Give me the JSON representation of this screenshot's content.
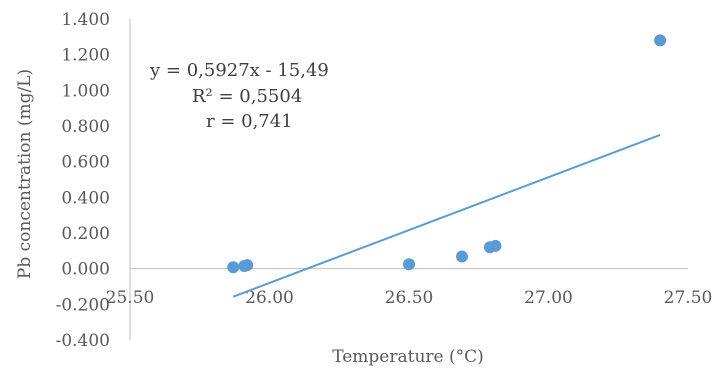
{
  "chart_data": {
    "type": "scatter",
    "title": "",
    "xlabel": "Temperature (°C)",
    "ylabel": "Pb concentration (mg/L)",
    "xlim": [
      25.5,
      27.5
    ],
    "ylim": [
      -0.4,
      1.4
    ],
    "x_ticks": [
      "25.50",
      "26.00",
      "26.50",
      "27.00",
      "27.50"
    ],
    "y_ticks": [
      "-0.400",
      "-0.200",
      "0.000",
      "0.200",
      "0.400",
      "0.600",
      "0.800",
      "1.000",
      "1.200",
      "1.400"
    ],
    "series": [
      {
        "points": [
          {
            "x": 25.87,
            "y": 0.008
          },
          {
            "x": 25.91,
            "y": 0.015
          },
          {
            "x": 25.92,
            "y": 0.02
          },
          {
            "x": 26.5,
            "y": 0.025
          },
          {
            "x": 26.69,
            "y": 0.068
          },
          {
            "x": 26.79,
            "y": 0.12
          },
          {
            "x": 26.81,
            "y": 0.128
          },
          {
            "x": 27.4,
            "y": 1.28
          }
        ],
        "color": "#5b9bd5"
      }
    ],
    "trendline": {
      "slope": 0.5927,
      "intercept": -15.49,
      "x_range": [
        25.87,
        27.4
      ],
      "color": "#5b9bd5"
    },
    "annotations": [
      "y = 0,5927x - 15,49",
      "R² = 0,5504",
      "r = 0,741"
    ],
    "grid": false,
    "legend": "none"
  }
}
